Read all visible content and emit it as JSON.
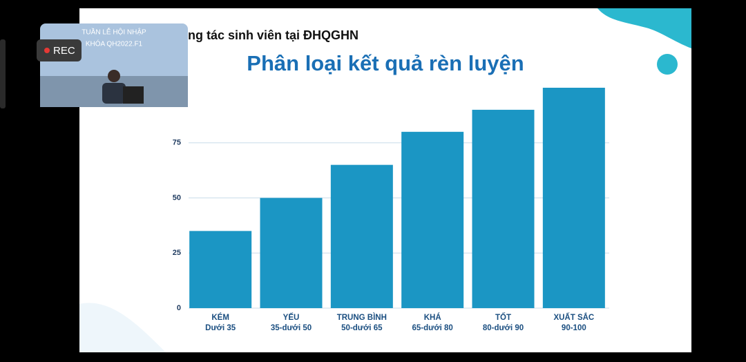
{
  "screen": {
    "rec": "REC",
    "slide_header": "ng tác sinh viên tại ĐHQGHN",
    "webcam_banner": [
      "TUẦN LỄ HỘI NHẬP",
      "KHÓA QH2022.F1"
    ]
  },
  "chart_data": {
    "type": "bar",
    "title": "Phân loại kết quả rèn luyện",
    "categories": [
      "KÉM",
      "YẾU",
      "TRUNG BÌNH",
      "KHÁ",
      "TỐT",
      "XUẤT SẮC"
    ],
    "category_ranges": [
      "Dưới 35",
      "35-dưới 50",
      "50-dưới 65",
      "65-dưới 80",
      "80-dưới 90",
      "90-100"
    ],
    "values": [
      35,
      50,
      65,
      80,
      90,
      100
    ],
    "color": "#1b96c4",
    "ylim": [
      0,
      100
    ],
    "yticks": [
      0,
      25,
      50,
      75
    ],
    "grid": true
  }
}
